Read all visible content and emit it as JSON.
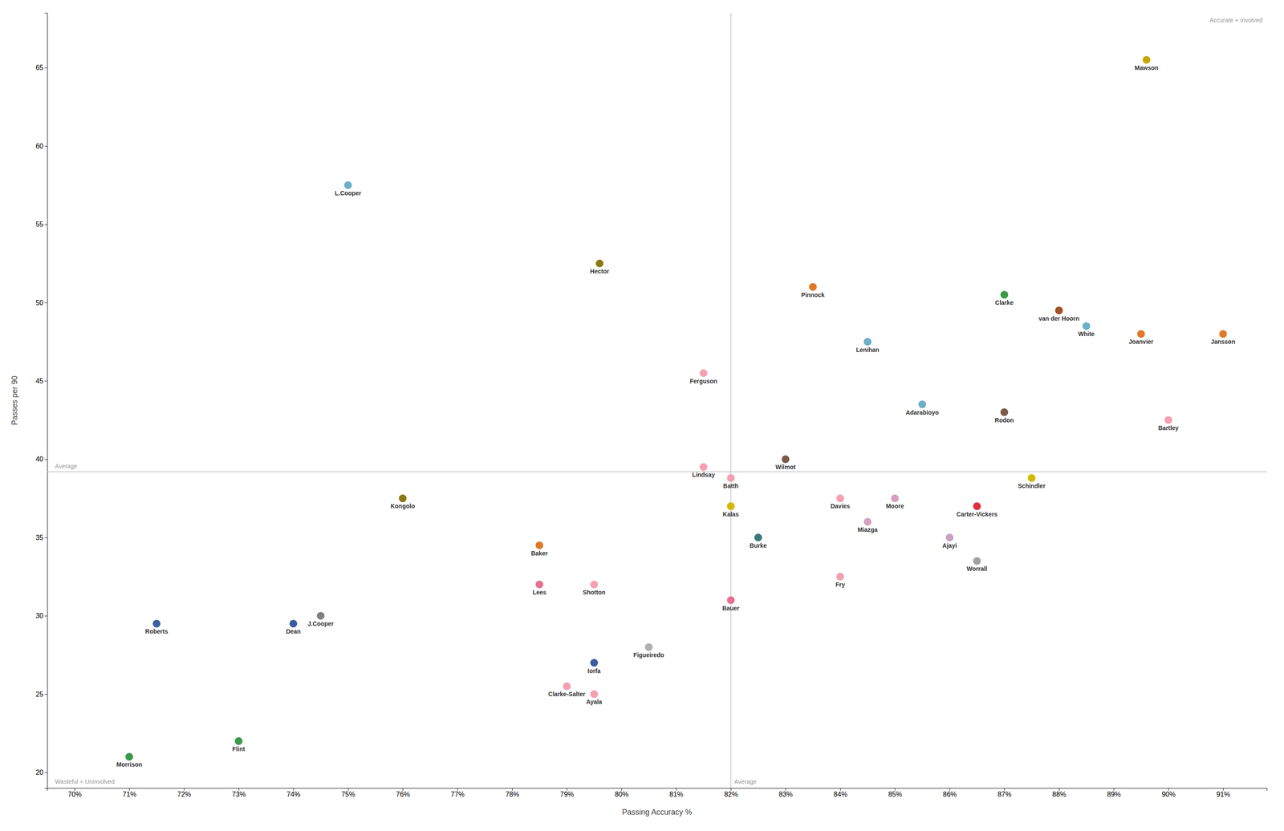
{
  "chart_data": {
    "type": "scatter",
    "xlabel": "Passing Accuracy %",
    "ylabel": "Passes per 90",
    "point_labels": [
      "Mawson",
      "L.Cooper",
      "Hector",
      "Pinnock",
      "Clarke",
      "van der Hoorn",
      "White",
      "Joanvier",
      "Jansson",
      "Lenihan",
      "Ferguson",
      "Adarabioyo",
      "Rodon",
      "Bartley",
      "Wilmot",
      "Lindsay",
      "Batth",
      "Schindler",
      "Kongolo",
      "Davies",
      "Moore",
      "Carter-Vickers",
      "Kalas",
      "Miazga",
      "Ajayi",
      "Burke",
      "Baker",
      "Worrall",
      "Fry",
      "Lees",
      "Shotton",
      "Bauer",
      "Roberts",
      "Dean",
      "J.Cooper",
      "Figueiredo",
      "Iorfa",
      "Clarke-Salter",
      "Ayala",
      "Flint",
      "Morrison"
    ],
    "x": [
      89.6,
      75.0,
      79.6,
      83.5,
      87.0,
      88.0,
      88.5,
      89.5,
      91.0,
      84.5,
      81.5,
      85.5,
      87.0,
      90.0,
      83.0,
      81.5,
      82.0,
      87.5,
      76.0,
      84.0,
      85.0,
      86.5,
      82.0,
      84.5,
      86.0,
      82.5,
      78.5,
      86.5,
      84.0,
      78.5,
      79.5,
      82.0,
      71.5,
      74.0,
      74.5,
      80.5,
      79.5,
      79.0,
      79.5,
      73.0,
      71.0
    ],
    "values": [
      65.5,
      57.5,
      52.5,
      51.0,
      50.5,
      49.5,
      48.5,
      48.0,
      48.0,
      47.5,
      45.5,
      43.5,
      43.0,
      42.5,
      40.0,
      39.5,
      38.8,
      38.8,
      37.5,
      37.5,
      37.5,
      37.0,
      37.0,
      36.0,
      35.0,
      35.0,
      34.5,
      33.5,
      32.5,
      32.0,
      32.0,
      31.0,
      29.5,
      29.5,
      30.0,
      28.0,
      27.0,
      25.5,
      25.0,
      22.0,
      21.0
    ],
    "colors": [
      "#C8A800",
      "#6CAFC8",
      "#8B7A14",
      "#E07828",
      "#3A9A48",
      "#A05228",
      "#6CAFC8",
      "#E07828",
      "#E07828",
      "#6CAFC8",
      "#F4A0B0",
      "#6CAFC8",
      "#7B5A48",
      "#F4A0B0",
      "#7B5A48",
      "#F4A0B0",
      "#F4A0B0",
      "#D4B800",
      "#8B7A14",
      "#F4A0B0",
      "#D4A0C0",
      "#E03040",
      "#D4B800",
      "#D4A0C0",
      "#C8A0C0",
      "#3A7A7A",
      "#E07828",
      "#A0A0A0",
      "#F4A0B0",
      "#E87090",
      "#F4A0B0",
      "#E87090",
      "#3A5EA0",
      "#3A5EA0",
      "#808080",
      "#B0B0B0",
      "#3A5EA0",
      "#F4A0B0",
      "#F4A0B0",
      "#3A9A48",
      "#3A9A48"
    ],
    "avg_x": 82.0,
    "avg_y": 39.2,
    "avg_label": "Average",
    "annotations": [
      "Accurate + Involved",
      "Wasteful + Uninvolved"
    ],
    "xlim": [
      69.5,
      91.8
    ],
    "ylim": [
      19.0,
      68.5
    ],
    "xticks": [
      {
        "value": 70,
        "label": "70%"
      },
      {
        "value": 71,
        "label": "71%"
      },
      {
        "value": 72,
        "label": "72%"
      },
      {
        "value": 73,
        "label": "73%"
      },
      {
        "value": 74,
        "label": "74%"
      },
      {
        "value": 75,
        "label": "75%"
      },
      {
        "value": 76,
        "label": "76%"
      },
      {
        "value": 77,
        "label": "77%"
      },
      {
        "value": 78,
        "label": "78%"
      },
      {
        "value": 79,
        "label": "79%"
      },
      {
        "value": 80,
        "label": "80%"
      },
      {
        "value": 81,
        "label": "81%"
      },
      {
        "value": 82,
        "label": "82%"
      },
      {
        "value": 83,
        "label": "83%"
      },
      {
        "value": 84,
        "label": "84%"
      },
      {
        "value": 85,
        "label": "85%"
      },
      {
        "value": 86,
        "label": "86%"
      },
      {
        "value": 87,
        "label": "87%"
      },
      {
        "value": 88,
        "label": "88%"
      },
      {
        "value": 89,
        "label": "89%"
      },
      {
        "value": 90,
        "label": "90%"
      },
      {
        "value": 91,
        "label": "91%"
      }
    ],
    "yticks": [
      20,
      25,
      30,
      35,
      40,
      45,
      50,
      55,
      60,
      65
    ],
    "grid": false
  }
}
